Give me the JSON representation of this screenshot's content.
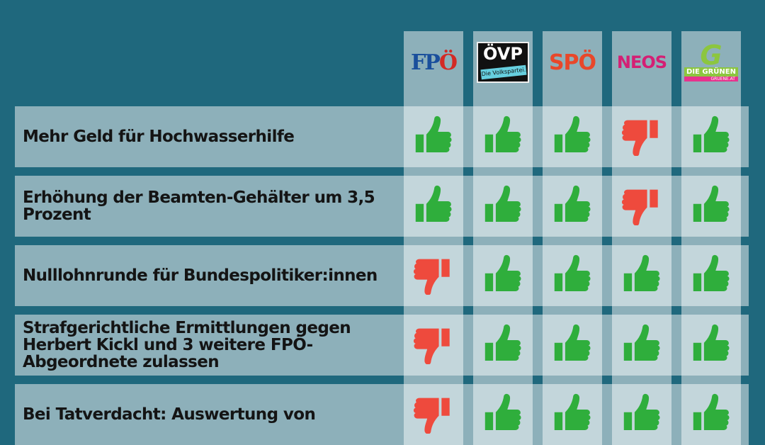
{
  "colors": {
    "up": "#2fae3c",
    "down": "#ee4a3d",
    "background": "#1f687d"
  },
  "parties": [
    {
      "name": "FPÖ",
      "logo_text": "FPÖ"
    },
    {
      "name": "ÖVP",
      "logo_text": "ÖVP",
      "logo_subtext": "Die Volkspartei."
    },
    {
      "name": "SPÖ",
      "logo_text": "SPÖ"
    },
    {
      "name": "NEOS",
      "logo_text": "NEOS"
    },
    {
      "name": "Die Grünen",
      "logo_text": "DIE GRÜNEN",
      "logo_subtext": "GRUENE.AT"
    }
  ],
  "rows": [
    {
      "label": "Mehr Geld für Hochwasserhilfe",
      "votes": [
        "up",
        "up",
        "up",
        "down",
        "up"
      ]
    },
    {
      "label": "Erhöhung der Beamten-Gehälter um 3,5 Prozent",
      "votes": [
        "up",
        "up",
        "up",
        "down",
        "up"
      ]
    },
    {
      "label": "Nulllohnrunde für Bundespolitiker:innen",
      "votes": [
        "down",
        "up",
        "up",
        "up",
        "up"
      ]
    },
    {
      "label": "Strafgerichtliche Ermittlungen gegen Herbert Kickl und 3 weitere FPÖ-Abgeordnete zulassen",
      "votes": [
        "down",
        "up",
        "up",
        "up",
        "up"
      ]
    },
    {
      "label": "Bei Tatverdacht: Auswertung von",
      "votes": [
        "down",
        "up",
        "up",
        "up",
        "up"
      ]
    }
  ]
}
